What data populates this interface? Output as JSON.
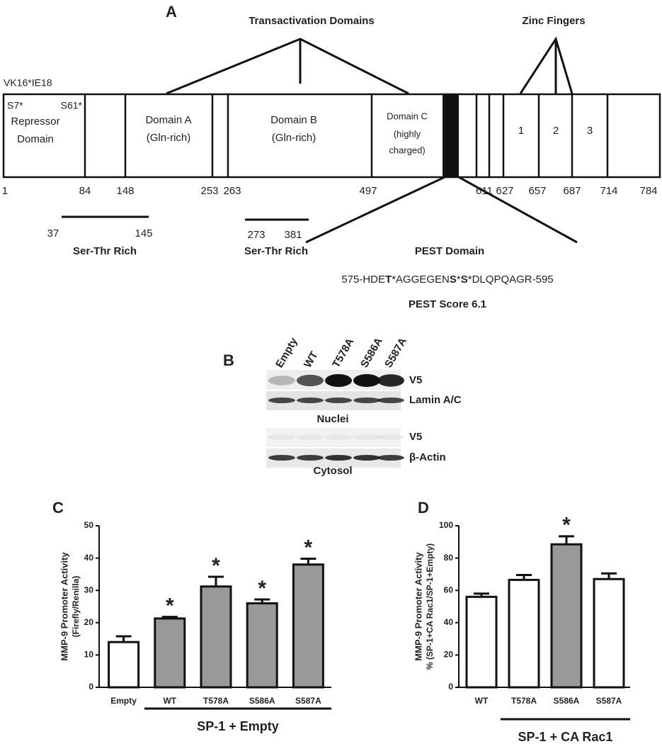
{
  "panel_a": {
    "label": "A",
    "transactivation_title": "Transactivation Domains",
    "zinc_title": "Zinc Fingers",
    "construct": "VK16*IE18",
    "site_1": "S7*",
    "site_2": "S61*",
    "repressor": [
      "Repressor",
      "Domain"
    ],
    "domain_a": [
      "Domain A",
      "(Gln-rich)"
    ],
    "domain_b": [
      "Domain B",
      "(Gln-rich)"
    ],
    "domain_c": [
      "Domain C",
      "(highly",
      "charged)"
    ],
    "fingers": [
      "1",
      "2",
      "3"
    ],
    "positions": [
      1,
      84,
      148,
      253,
      263,
      497,
      611,
      627,
      657,
      687,
      714,
      784
    ],
    "ser_thr_1": {
      "start": 37,
      "end": 145,
      "label": "Ser-Thr Rich"
    },
    "ser_thr_2": {
      "start": 273,
      "end": 381,
      "label": "Ser-Thr Rich"
    },
    "pest_title": "PEST Domain",
    "pest_sequence": [
      {
        "text": "575-HDE",
        "bold": false
      },
      {
        "text": "T",
        "bold": true
      },
      {
        "text": "*AGGEGEN",
        "bold": false
      },
      {
        "text": "S",
        "bold": true
      },
      {
        "text": "*",
        "bold": false
      },
      {
        "text": "S",
        "bold": true
      },
      {
        "text": "*DLQPQAGR-595",
        "bold": false
      }
    ],
    "pest_score": "PEST Score 6.1"
  },
  "panel_b": {
    "label": "B",
    "lanes": [
      "Empty",
      "WT",
      "T578A",
      "S586A",
      "S587A"
    ],
    "rows": [
      "V5",
      "Lamin A/C",
      "V5",
      "β-Actin"
    ],
    "fractions": [
      "Nuclei",
      "Cytosol"
    ]
  },
  "chart_data": [
    {
      "type": "bar",
      "panel": "C",
      "ylabel": [
        "MMP-9 Promoter Activity",
        "(Firefly/Renilla)"
      ],
      "categories": [
        "Empty",
        "WT",
        "T578A",
        "S586A",
        "S587A"
      ],
      "values": [
        14,
        21.3,
        31.2,
        26,
        38
      ],
      "errors": [
        1.8,
        0.5,
        3,
        1.2,
        1.8
      ],
      "colors": [
        "#ffffff",
        "#999999",
        "#999999",
        "#999999",
        "#999999"
      ],
      "markers": [
        null,
        "*",
        "*",
        "*",
        "*"
      ],
      "ylim": [
        0,
        50
      ],
      "yticks": [
        0,
        10,
        20,
        30,
        40,
        50
      ],
      "group_label": "SP-1 + Empty"
    },
    {
      "type": "bar",
      "panel": "D",
      "ylabel": [
        "MMP-9 Promoter Activity",
        "% (SP-1+CA Rac1/SP-1+Empty)"
      ],
      "categories": [
        "WT",
        "T578A",
        "S586A",
        "S587A"
      ],
      "values": [
        56,
        66.5,
        88.5,
        67
      ],
      "errors": [
        2,
        3,
        5,
        3.5
      ],
      "colors": [
        "#ffffff",
        "#ffffff",
        "#999999",
        "#ffffff"
      ],
      "markers": [
        null,
        null,
        "*",
        null
      ],
      "ylim": [
        0,
        100
      ],
      "yticks": [
        0,
        20,
        40,
        60,
        80,
        100
      ],
      "group_label": "SP-1 + CA Rac1"
    }
  ]
}
